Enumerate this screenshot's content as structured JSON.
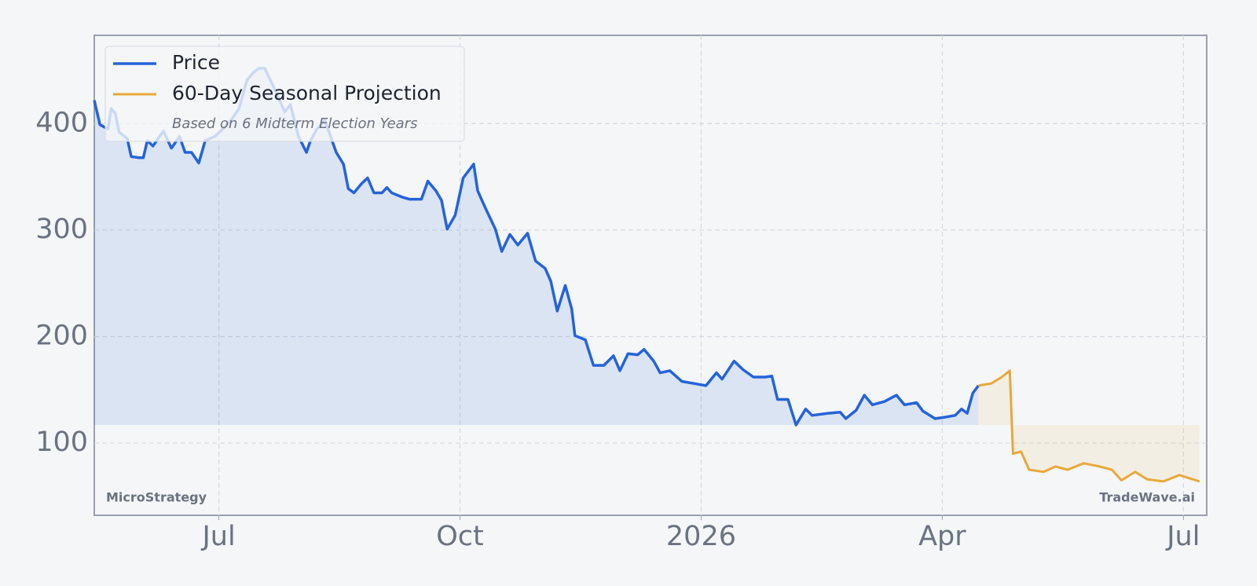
{
  "chart_data": {
    "type": "line",
    "xlim": [
      4.45,
      18.29
    ],
    "xticks": [
      {
        "value": 6,
        "label": "Jul"
      },
      {
        "value": 9,
        "label": "Oct"
      },
      {
        "value": 12,
        "label": "2026"
      },
      {
        "value": 15,
        "label": "Apr"
      },
      {
        "value": 18,
        "label": "Jul"
      }
    ],
    "ylim": [
      32.2,
      482.9
    ],
    "yticks": [
      100,
      200,
      300,
      400
    ],
    "grid": true,
    "legend": "upper left",
    "legend_note": "Based on 6 Midterm Election Years",
    "watermark_left": "MicroStrategy",
    "watermark_right": "TradeWave.ai",
    "series": [
      {
        "name": "Price",
        "color": "#2563d9",
        "x": [
          4.45,
          4.52,
          4.62,
          4.66,
          4.71,
          4.76,
          4.86,
          4.91,
          5.01,
          5.06,
          5.11,
          5.18,
          5.31,
          5.41,
          5.51,
          5.58,
          5.66,
          5.75,
          5.83,
          5.95,
          6.05,
          6.15,
          6.25,
          6.35,
          6.43,
          6.5,
          6.57,
          6.69,
          6.82,
          6.89,
          6.99,
          7.09,
          7.14,
          7.22,
          7.32,
          7.39,
          7.46,
          7.55,
          7.61,
          7.68,
          7.78,
          7.85,
          7.93,
          8.03,
          8.09,
          8.15,
          8.28,
          8.37,
          8.52,
          8.6,
          8.7,
          8.77,
          8.84,
          8.94,
          9.04,
          9.17,
          9.22,
          9.32,
          9.44,
          9.52,
          9.62,
          9.72,
          9.84,
          9.94,
          10.06,
          10.13,
          10.21,
          10.31,
          10.39,
          10.43,
          10.56,
          10.66,
          10.79,
          10.91,
          10.99,
          11.09,
          11.21,
          11.29,
          11.41,
          11.49,
          11.61,
          11.76,
          11.91,
          12.06,
          12.19,
          12.26,
          12.41,
          12.52,
          12.65,
          12.8,
          12.88,
          12.95,
          13.08,
          13.18,
          13.3,
          13.38,
          13.58,
          13.73,
          13.8,
          13.93,
          14.03,
          14.13,
          14.28,
          14.43,
          14.53,
          14.68,
          14.76,
          14.91,
          15.01,
          15.16,
          15.24,
          15.31,
          15.38,
          15.45
        ],
        "values": [
          422,
          399,
          395,
          414,
          410,
          392,
          386,
          369,
          368,
          368,
          384,
          379,
          393,
          377,
          388,
          373,
          373,
          363,
          384,
          388,
          395,
          403,
          414,
          441,
          448,
          452,
          452,
          433,
          411,
          418,
          388,
          373,
          384,
          395,
          403,
          388,
          373,
          362,
          339,
          335,
          344,
          349,
          335,
          335,
          340,
          335,
          331,
          329,
          329,
          346,
          337,
          328,
          301,
          314,
          349,
          362,
          337,
          320,
          301,
          280,
          296,
          286,
          297,
          271,
          264,
          252,
          224,
          248,
          226,
          201,
          197,
          173,
          173,
          182,
          168,
          184,
          183,
          188,
          177,
          166,
          168,
          158,
          156,
          154,
          166,
          160,
          177,
          169,
          162,
          162,
          163,
          141,
          141,
          117,
          132,
          126,
          128,
          129,
          123,
          131,
          145,
          136,
          139,
          145,
          136,
          138,
          130,
          123,
          124,
          126,
          132,
          128,
          147,
          154
        ]
      },
      {
        "name": "60-Day Seasonal Projection",
        "color": "#e8a83a",
        "x": [
          15.45,
          15.61,
          15.74,
          15.84,
          15.88,
          15.98,
          16.08,
          16.26,
          16.41,
          16.56,
          16.76,
          16.96,
          17.11,
          17.23,
          17.4,
          17.55,
          17.75,
          17.95,
          18.2
        ],
        "values": [
          154,
          156,
          162,
          168,
          90,
          92,
          75,
          73,
          78,
          75,
          81,
          78,
          75,
          65,
          73,
          66,
          64,
          70,
          64
        ]
      }
    ]
  }
}
